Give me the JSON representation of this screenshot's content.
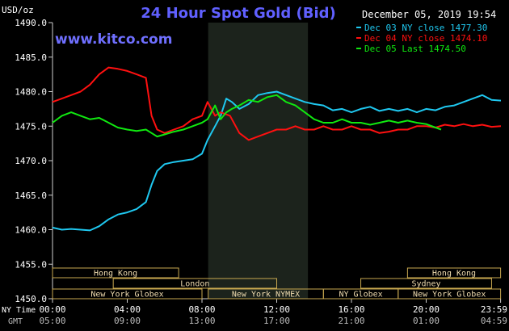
{
  "header": {
    "title": "24 Hour Spot Gold (Bid)",
    "website": "www.kitco.com",
    "datetime": "December 05, 2019 19:54",
    "y_unit": "USD/oz"
  },
  "legend": [
    {
      "label": "Dec 03 NY close 1477.30",
      "color": "#1fc8f0"
    },
    {
      "label": "Dec 04 NY close 1474.10",
      "color": "#ff1010"
    },
    {
      "label": "Dec 05 Last 1474.50",
      "color": "#10e810"
    }
  ],
  "sessions": [
    {
      "label": "Hong Kong",
      "row": 0,
      "start": "00:00",
      "end": "06:45"
    },
    {
      "label": "Hong Kong",
      "row": 0,
      "start": "19:00",
      "end": "23:59"
    },
    {
      "label": "London",
      "row": 1,
      "start": "03:15",
      "end": "12:00"
    },
    {
      "label": "Sydney",
      "row": 1,
      "start": "16:30",
      "end": "23:30"
    },
    {
      "label": "New York Globex",
      "row": 2,
      "start": "00:00",
      "end": "08:00"
    },
    {
      "label": "New York NYMEX",
      "row": 2,
      "start": "08:20",
      "end": "14:30"
    },
    {
      "label": "NY Globex",
      "row": 2,
      "start": "14:30",
      "end": "18:30"
    },
    {
      "label": "New York Globex",
      "row": 2,
      "start": "18:30",
      "end": "23:59"
    }
  ],
  "axis_row_labels": {
    "ny_time": "NY Time",
    "gmt": "GMT"
  },
  "x_ticks_ny": [
    "00:00",
    "04:00",
    "08:00",
    "12:00",
    "16:00",
    "20:00",
    "23:59"
  ],
  "x_ticks_gmt": [
    "05:00",
    "09:00",
    "13:00",
    "17:00",
    "21:00",
    "01:00",
    "04:59"
  ],
  "chart_data": {
    "type": "line",
    "title": "24 Hour Spot Gold (Bid)",
    "ylabel": "USD/oz",
    "xlabel": "NY Time",
    "ylim": [
      1450,
      1490
    ],
    "xlim_hours": [
      0,
      24
    ],
    "y_ticks": [
      1450,
      1455,
      1460,
      1465,
      1470,
      1475,
      1480,
      1485,
      1490
    ],
    "grid": false,
    "legend_position": "top-right",
    "highlight_band_hours": [
      8.33,
      13.67
    ],
    "series": [
      {
        "name": "Dec 03 NY close 1477.30",
        "color": "#1fc8f0",
        "x": [
          0,
          0.5,
          1,
          1.5,
          2,
          2.5,
          3,
          3.5,
          4,
          4.5,
          5,
          5.3,
          5.6,
          6,
          6.5,
          7,
          7.5,
          8,
          8.3,
          8.7,
          9,
          9.3,
          9.6,
          10,
          10.5,
          11,
          11.5,
          12,
          12.5,
          13,
          13.5,
          14,
          14.5,
          15,
          15.5,
          16,
          16.5,
          17,
          17.5,
          18,
          18.5,
          19,
          19.5,
          20,
          20.5,
          21,
          21.5,
          22,
          22.5,
          23,
          23.5,
          24
        ],
        "y": [
          1460.3,
          1460.0,
          1460.1,
          1460.0,
          1459.9,
          1460.5,
          1461.5,
          1462.2,
          1462.5,
          1463.0,
          1464.0,
          1466.5,
          1468.5,
          1469.5,
          1469.8,
          1470.0,
          1470.2,
          1471.0,
          1473.0,
          1475.0,
          1476.5,
          1479.0,
          1478.5,
          1477.5,
          1478.2,
          1479.5,
          1479.8,
          1480.0,
          1479.5,
          1479.0,
          1478.5,
          1478.2,
          1478.0,
          1477.3,
          1477.5,
          1477.0,
          1477.5,
          1477.8,
          1477.2,
          1477.5,
          1477.2,
          1477.5,
          1477.0,
          1477.5,
          1477.3,
          1477.8,
          1478.0,
          1478.5,
          1479.0,
          1479.5,
          1478.8,
          1478.7
        ]
      },
      {
        "name": "Dec 04 NY close 1474.10",
        "color": "#ff1010",
        "x": [
          0,
          0.5,
          1,
          1.5,
          2,
          2.5,
          3,
          3.5,
          4,
          4.5,
          5,
          5.3,
          5.6,
          6,
          6.5,
          7,
          7.5,
          8,
          8.3,
          8.7,
          9,
          9.5,
          10,
          10.5,
          11,
          11.5,
          12,
          12.5,
          13,
          13.5,
          14,
          14.5,
          15,
          15.5,
          16,
          16.5,
          17,
          17.5,
          18,
          18.5,
          19,
          19.5,
          20,
          20.5,
          21,
          21.5,
          22,
          22.5,
          23,
          23.5,
          24
        ],
        "y": [
          1478.5,
          1479.0,
          1479.5,
          1480.0,
          1481.0,
          1482.5,
          1483.5,
          1483.3,
          1483.0,
          1482.5,
          1482.0,
          1476.5,
          1474.5,
          1474.0,
          1474.5,
          1475.0,
          1476.0,
          1476.5,
          1478.5,
          1476.5,
          1477.0,
          1476.5,
          1474.0,
          1473.0,
          1473.5,
          1474.0,
          1474.5,
          1474.5,
          1475.0,
          1474.5,
          1474.5,
          1475.0,
          1474.5,
          1474.5,
          1475.0,
          1474.5,
          1474.5,
          1474.0,
          1474.2,
          1474.5,
          1474.5,
          1475.0,
          1475.0,
          1474.8,
          1475.2,
          1475.0,
          1475.3,
          1475.0,
          1475.2,
          1474.9,
          1475.0
        ]
      },
      {
        "name": "Dec 05 Last 1474.50",
        "color": "#10e810",
        "x": [
          0,
          0.5,
          1,
          1.5,
          2,
          2.5,
          3,
          3.5,
          4,
          4.5,
          5,
          5.3,
          5.6,
          6,
          6.5,
          7,
          7.5,
          8,
          8.3,
          8.7,
          9,
          9.3,
          9.6,
          10,
          10.5,
          11,
          11.5,
          12,
          12.5,
          13,
          13.5,
          14,
          14.5,
          15,
          15.5,
          16,
          16.5,
          17,
          17.5,
          18,
          18.5,
          19,
          19.5,
          20,
          20.5,
          20.8
        ],
        "y": [
          1475.5,
          1476.5,
          1477.0,
          1476.5,
          1476.0,
          1476.2,
          1475.5,
          1474.8,
          1474.5,
          1474.3,
          1474.5,
          1474.0,
          1473.5,
          1473.8,
          1474.2,
          1474.5,
          1475.0,
          1475.5,
          1476.0,
          1478.0,
          1476.0,
          1477.0,
          1477.5,
          1478.0,
          1478.8,
          1478.5,
          1479.2,
          1479.5,
          1478.5,
          1478.0,
          1477.0,
          1476.0,
          1475.5,
          1475.5,
          1476.0,
          1475.5,
          1475.5,
          1475.2,
          1475.5,
          1475.8,
          1475.5,
          1475.8,
          1475.5,
          1475.3,
          1474.8,
          1474.5
        ]
      }
    ]
  }
}
